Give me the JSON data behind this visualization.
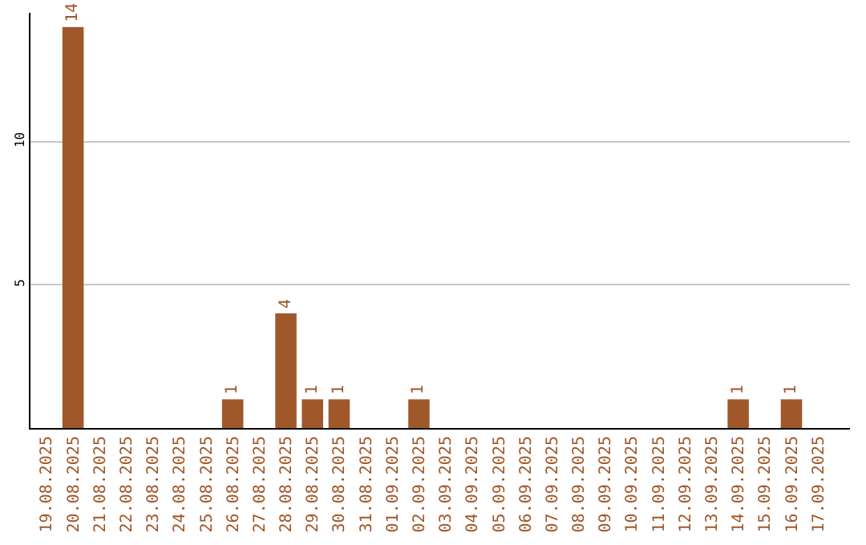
{
  "chart_data": {
    "type": "bar",
    "categories": [
      "19.08.2025",
      "20.08.2025",
      "21.08.2025",
      "22.08.2025",
      "23.08.2025",
      "24.08.2025",
      "25.08.2025",
      "26.08.2025",
      "27.08.2025",
      "28.08.2025",
      "29.08.2025",
      "30.08.2025",
      "31.08.2025",
      "01.09.2025",
      "02.09.2025",
      "03.09.2025",
      "04.09.2025",
      "05.09.2025",
      "06.09.2025",
      "07.09.2025",
      "08.09.2025",
      "09.09.2025",
      "10.09.2025",
      "11.09.2025",
      "12.09.2025",
      "13.09.2025",
      "14.09.2025",
      "15.09.2025",
      "16.09.2025",
      "17.09.2025"
    ],
    "values": [
      0,
      14,
      0,
      0,
      0,
      0,
      0,
      1,
      0,
      4,
      1,
      1,
      0,
      0,
      1,
      0,
      0,
      0,
      0,
      0,
      0,
      0,
      0,
      0,
      0,
      0,
      1,
      0,
      1,
      0
    ],
    "value_labels": [
      null,
      "14",
      null,
      null,
      null,
      null,
      null,
      "1",
      null,
      "4",
      "1",
      "1",
      null,
      null,
      "1",
      null,
      null,
      null,
      null,
      null,
      null,
      null,
      null,
      null,
      null,
      null,
      "1",
      null,
      "1",
      null
    ],
    "color": "#a0582a",
    "ylim": [
      0,
      14.5
    ],
    "yticks": [
      5,
      10
    ],
    "grid": "y",
    "legend": false
  }
}
